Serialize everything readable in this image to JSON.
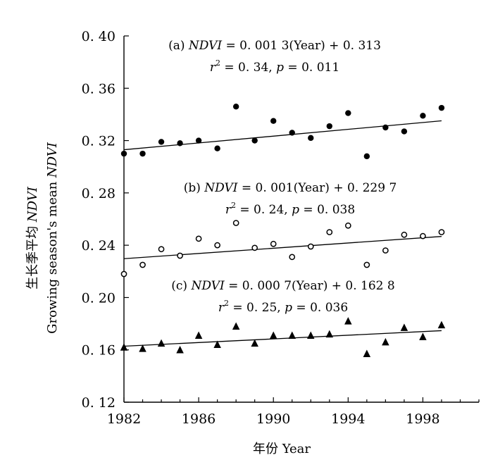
{
  "chart_data": {
    "type": "scatter",
    "xlabel": "年份 Year",
    "ylabel_zh": "生长季平均",
    "ylabel_zh_var": "NDVI",
    "ylabel_en": "Growing season's mean",
    "ylabel_en_var": "NDVI",
    "xlim": [
      1982,
      2001
    ],
    "ylim": [
      0.12,
      0.4
    ],
    "x_ticks": [
      1982,
      1986,
      1990,
      1994,
      1998
    ],
    "x_tick_labels": [
      "1982",
      "1986",
      "1990",
      "1994",
      "1998"
    ],
    "y_ticks": [
      0.12,
      0.16,
      0.2,
      0.24,
      0.28,
      0.32,
      0.36,
      0.4
    ],
    "y_tick_labels": [
      "0. 12",
      "0. 16",
      "0. 20",
      "0. 24",
      "0. 28",
      "0. 32",
      "0. 36",
      "0. 40"
    ],
    "grid": false,
    "x": [
      1982,
      1983,
      1984,
      1985,
      1986,
      1987,
      1988,
      1989,
      1990,
      1991,
      1992,
      1993,
      1994,
      1995,
      1996,
      1997,
      1998,
      1999
    ],
    "series": [
      {
        "marker": "filled-circle",
        "values": [
          0.31,
          0.31,
          0.319,
          0.318,
          0.32,
          0.314,
          0.346,
          0.32,
          0.335,
          0.326,
          0.322,
          0.331,
          0.341,
          0.308,
          0.33,
          0.327,
          0.339,
          0.345
        ],
        "trend": {
          "slope": 0.0013,
          "intercept_at_start": 0.313
        },
        "equation_prefix": "(a) ",
        "equation_var": "NDVI",
        "equation_rest": " = 0. 001 3(Year) + 0. 313",
        "stats": {
          "r_label": "r",
          "r_exp": "2",
          "r_value": " = 0. 34, ",
          "p_label": "p",
          "p_value": " = 0. 011"
        }
      },
      {
        "marker": "open-circle",
        "values": [
          0.218,
          0.225,
          0.237,
          0.232,
          0.245,
          0.24,
          0.257,
          0.238,
          0.241,
          0.231,
          0.239,
          0.25,
          0.255,
          0.225,
          0.236,
          0.248,
          0.247,
          0.25
        ],
        "trend": {
          "slope": 0.001,
          "intercept_at_start": 0.2297
        },
        "equation_prefix": "(b) ",
        "equation_var": "NDVI",
        "equation_rest": " = 0. 001(Year) + 0. 229 7",
        "stats": {
          "r_label": "r",
          "r_exp": "2",
          "r_value": " = 0. 24, ",
          "p_label": "p",
          "p_value": " = 0. 038"
        }
      },
      {
        "marker": "filled-triangle",
        "values": [
          0.162,
          0.161,
          0.165,
          0.16,
          0.171,
          0.164,
          0.178,
          0.165,
          0.171,
          0.171,
          0.171,
          0.172,
          0.182,
          0.157,
          0.166,
          0.177,
          0.17,
          0.179
        ],
        "trend": {
          "slope": 0.0007,
          "intercept_at_start": 0.1628
        },
        "equation_prefix": "(c) ",
        "equation_var": "NDVI",
        "equation_rest": " = 0. 000 7(Year) + 0. 162 8",
        "stats": {
          "r_label": "r",
          "r_exp": "2",
          "r_value": " = 0. 25, ",
          "p_label": "p",
          "p_value": " = 0. 036"
        }
      }
    ]
  }
}
